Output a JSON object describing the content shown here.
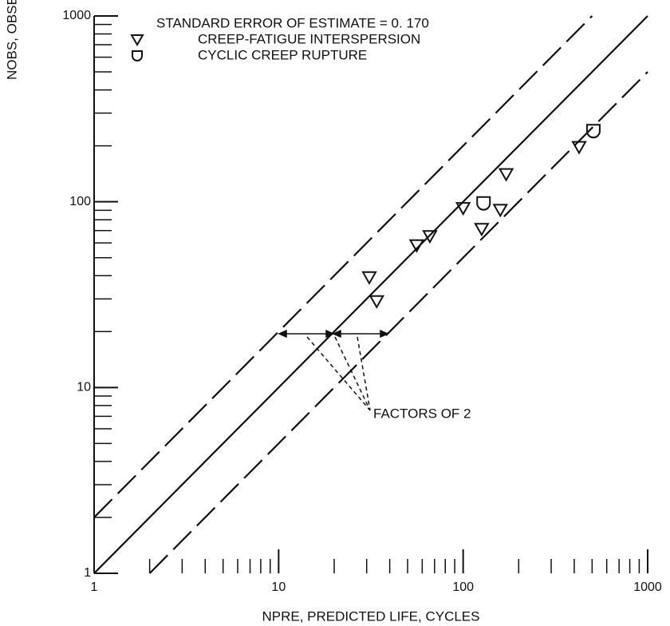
{
  "chart_data": {
    "type": "scatter",
    "xlabel": "NPRE, PREDICTED LIFE, CYCLES",
    "ylabel": "NOBS, OBSERV",
    "annotation": "STANDARD ERROR OF ESTIMATE = 0. 170",
    "factor_label": "FACTORS OF 2",
    "factor": 2,
    "xscale": "log",
    "yscale": "log",
    "xlim": [
      1,
      1000
    ],
    "ylim": [
      1,
      1000
    ],
    "xticks": [
      1,
      10,
      100,
      1000
    ],
    "yticks": [
      1,
      10,
      100,
      1000
    ],
    "xminorticks": [
      2,
      3,
      4,
      5,
      6,
      7,
      8,
      9,
      20,
      30,
      40,
      50,
      60,
      70,
      80,
      90,
      200,
      300,
      400,
      500,
      600,
      700,
      800,
      900
    ],
    "yminorticks": [
      2,
      3,
      4,
      5,
      6,
      7,
      8,
      9,
      20,
      30,
      40,
      50,
      60,
      70,
      80,
      90,
      200,
      300,
      400,
      500,
      600,
      700,
      800,
      900
    ],
    "series": [
      {
        "name": "CREEP-FATIGUE INTERSPERSION",
        "marker": "triangle",
        "color": "#111111",
        "x": [
          31,
          34,
          56,
          66,
          100,
          126,
          159,
          171,
          425
        ],
        "values": [
          39,
          29,
          58,
          65,
          92,
          71,
          90,
          140,
          196
        ]
      },
      {
        "name": "CYCLIC CREEP RUPTURE",
        "marker": "cup",
        "color": "#111111",
        "x": [
          129,
          508
        ],
        "values": [
          98,
          240
        ]
      }
    ]
  }
}
